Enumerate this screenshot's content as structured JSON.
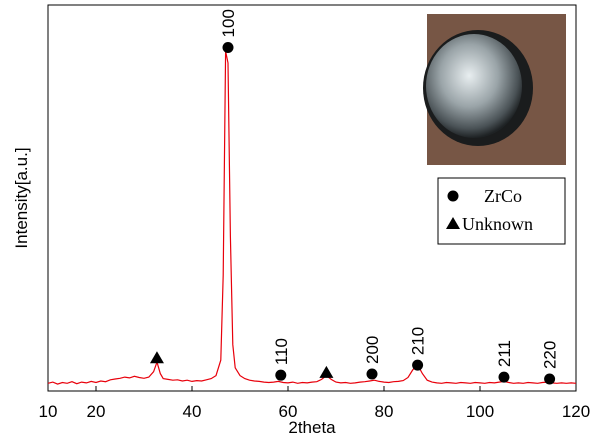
{
  "chart_data": {
    "type": "line",
    "x_label": "2theta",
    "y_label": "Intensity[a.u.]",
    "color": "#e8000b",
    "xlim": [
      10,
      120
    ],
    "xticks": [
      10,
      20,
      40,
      60,
      80,
      100,
      120
    ],
    "ylim": [
      0,
      100
    ],
    "x": [
      10,
      11,
      12,
      13,
      14,
      15,
      16,
      17,
      18,
      19,
      20,
      21,
      22,
      23,
      24,
      25,
      26,
      27,
      28,
      29,
      30,
      31,
      32,
      32.7,
      33.4,
      34,
      35,
      36,
      37,
      38,
      39,
      40,
      41,
      42,
      43,
      44,
      45,
      46,
      46.5,
      47,
      47.5,
      48,
      48.5,
      49,
      50,
      51,
      52,
      53,
      54,
      55,
      56,
      57,
      58,
      59,
      60,
      61,
      62,
      63,
      64,
      65,
      66,
      67,
      68,
      69,
      70,
      71,
      72,
      73,
      74,
      75,
      76,
      77,
      78,
      79,
      80,
      81,
      82,
      83,
      84,
      85,
      86,
      87,
      88,
      89,
      90,
      91,
      92,
      93,
      94,
      95,
      96,
      97,
      98,
      99,
      100,
      101,
      102,
      103,
      104,
      105,
      106,
      107,
      108,
      109,
      110,
      111,
      112,
      113,
      114,
      115,
      116,
      117,
      118,
      119,
      120
    ],
    "values": [
      2.0,
      2.3,
      1.8,
      2.2,
      2.0,
      2.4,
      1.9,
      2.3,
      2.1,
      2.5,
      2.2,
      2.6,
      2.4,
      2.9,
      3.1,
      3.3,
      3.6,
      3.4,
      3.8,
      3.5,
      3.3,
      3.6,
      5.0,
      7.5,
      4.5,
      3.2,
      3.0,
      2.8,
      2.9,
      2.6,
      2.8,
      2.5,
      2.7,
      2.6,
      2.9,
      3.2,
      4.0,
      8,
      30,
      88,
      85,
      40,
      12,
      6,
      4,
      3.2,
      2.8,
      2.6,
      2.5,
      2.3,
      2.2,
      2.3,
      2.5,
      2.2,
      2.1,
      2.3,
      2.0,
      2.2,
      2.1,
      2.3,
      2.4,
      3.0,
      4.0,
      3.0,
      2.3,
      2.1,
      2.2,
      2.0,
      2.1,
      2.3,
      2.4,
      2.6,
      2.8,
      2.5,
      2.3,
      2.2,
      2.4,
      2.5,
      2.7,
      3.5,
      5.5,
      6.8,
      4.5,
      2.8,
      2.3,
      2.1,
      2.0,
      2.2,
      2.1,
      2.0,
      2.2,
      2.1,
      2.0,
      2.2,
      2.1,
      2.0,
      2.2,
      2.1,
      2.3,
      2.5,
      2.2,
      2.0,
      2.1,
      2.0,
      2.2,
      2.1,
      2.0,
      2.2,
      2.3,
      2.1,
      2.0,
      2.1,
      2.0,
      2.1,
      2.0
    ],
    "annotations": [
      {
        "label": "100",
        "x": 47.5,
        "y": 89,
        "marker": "circle"
      },
      {
        "label": "110",
        "x": 58.5,
        "y": 4.1,
        "marker": "circle"
      },
      {
        "label": "200",
        "x": 77.5,
        "y": 4.4,
        "marker": "circle"
      },
      {
        "label": "210",
        "x": 87,
        "y": 6.7,
        "marker": "circle"
      },
      {
        "label": "211",
        "x": 105,
        "y": 3.6,
        "marker": "circle"
      },
      {
        "label": "220",
        "x": 114.5,
        "y": 3.1,
        "marker": "circle"
      },
      {
        "x": 32.7,
        "y": 8.5,
        "marker": "triangle"
      },
      {
        "x": 68,
        "y": 4.7,
        "marker": "triangle"
      }
    ],
    "legend": [
      {
        "label": "ZrCo",
        "marker": "circle"
      },
      {
        "label": "Unknown",
        "marker": "triangle"
      }
    ]
  }
}
